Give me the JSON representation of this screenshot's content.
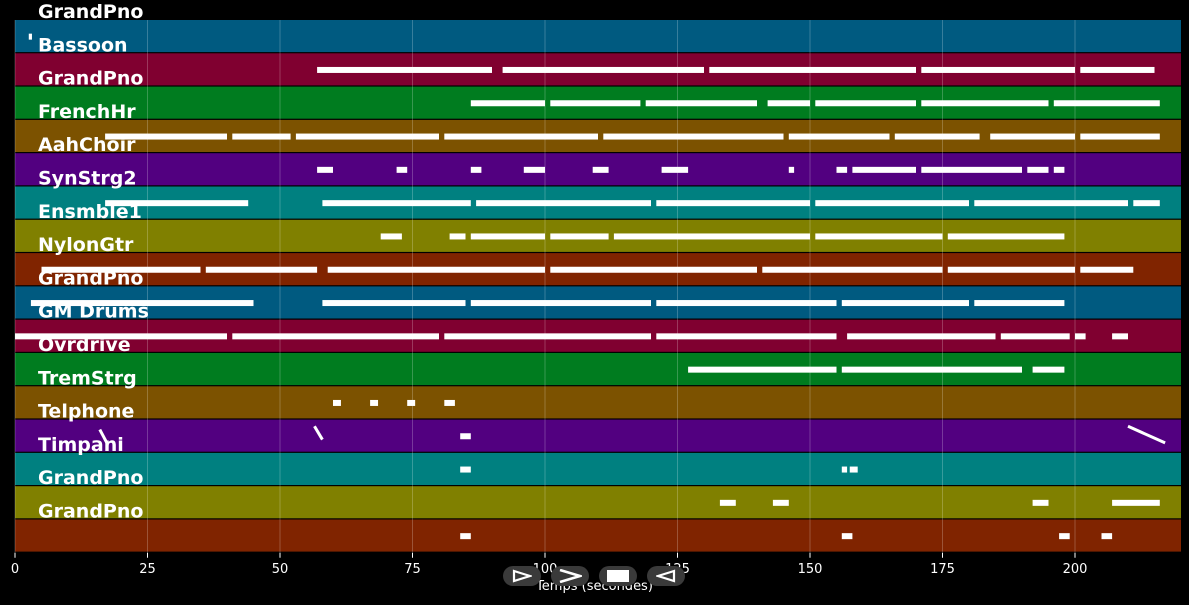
{
  "tracks": [
    {
      "label": "GrandPno",
      "color": "#005a80"
    },
    {
      "label": "Bassoon",
      "color": "#800030"
    },
    {
      "label": "GrandPno",
      "color": "#007c1f"
    },
    {
      "label": "FrenchHr",
      "color": "#7c5200"
    },
    {
      "label": "AahChoir",
      "color": "#520080"
    },
    {
      "label": "SynStrg2",
      "color": "#008080"
    },
    {
      "label": "Ensmble1",
      "color": "#808000"
    },
    {
      "label": "NylonGtr",
      "color": "#802400"
    },
    {
      "label": "GrandPno",
      "color": "#005a80"
    },
    {
      "label": "GM Drums",
      "color": "#800030"
    },
    {
      "label": "Ovrdrive",
      "color": "#007c1f"
    },
    {
      "label": "TremStrg",
      "color": "#7c5200"
    },
    {
      "label": "Telphone",
      "color": "#520080"
    },
    {
      "label": "Timpani",
      "color": "#008080"
    },
    {
      "label": "GrandPno",
      "color": "#808000"
    },
    {
      "label": "GrandPno",
      "color": "#802400"
    }
  ],
  "x_axis": {
    "label": "Temps (secondes)",
    "ticks": [
      "0",
      "25",
      "50",
      "75",
      "100",
      "125",
      "150",
      "175",
      "200"
    ],
    "tick_values": [
      0,
      25,
      50,
      75,
      100,
      125,
      150,
      175,
      200
    ],
    "range": [
      0,
      220
    ]
  },
  "note_color": "#ffffff",
  "notes": [
    {
      "track": 0,
      "segments": [
        [
          2.6,
          3.2
        ]
      ]
    },
    {
      "track": 1,
      "segments": [
        [
          57,
          90
        ],
        [
          92,
          130
        ],
        [
          131,
          170
        ],
        [
          171,
          200
        ],
        [
          201,
          215
        ]
      ]
    },
    {
      "track": 2,
      "segments": [
        [
          86,
          100
        ],
        [
          101,
          118
        ],
        [
          119,
          140
        ],
        [
          142,
          150
        ],
        [
          151,
          170
        ],
        [
          171,
          195
        ],
        [
          196,
          216
        ]
      ]
    },
    {
      "track": 3,
      "segments": [
        [
          17,
          40
        ],
        [
          41,
          52
        ],
        [
          53,
          80
        ],
        [
          81,
          110
        ],
        [
          111,
          145
        ],
        [
          146,
          165
        ],
        [
          166,
          182
        ],
        [
          184,
          200
        ],
        [
          201,
          216
        ]
      ]
    },
    {
      "track": 4,
      "segments": [
        [
          57,
          60
        ],
        [
          72,
          74
        ],
        [
          86,
          88
        ],
        [
          96,
          100
        ],
        [
          109,
          112
        ],
        [
          122,
          127
        ],
        [
          146,
          147
        ],
        [
          155,
          157
        ],
        [
          158,
          170
        ],
        [
          171,
          190
        ],
        [
          191,
          195
        ],
        [
          196,
          198
        ]
      ]
    },
    {
      "track": 5,
      "segments": [
        [
          17,
          44
        ],
        [
          58,
          86
        ],
        [
          87,
          120
        ],
        [
          121,
          150
        ],
        [
          151,
          180
        ],
        [
          181,
          210
        ],
        [
          211,
          216
        ]
      ]
    },
    {
      "track": 6,
      "segments": [
        [
          69,
          73
        ],
        [
          82,
          85
        ],
        [
          86,
          100
        ],
        [
          101,
          112
        ],
        [
          113,
          150
        ],
        [
          151,
          175
        ],
        [
          176,
          198
        ]
      ]
    },
    {
      "track": 7,
      "segments": [
        [
          5,
          35
        ],
        [
          36,
          57
        ],
        [
          59,
          100
        ],
        [
          101,
          140
        ],
        [
          141,
          175
        ],
        [
          176,
          200
        ],
        [
          201,
          211
        ]
      ]
    },
    {
      "track": 8,
      "segments": [
        [
          3,
          45
        ],
        [
          58,
          85
        ],
        [
          86,
          120
        ],
        [
          121,
          155
        ],
        [
          156,
          180
        ],
        [
          181,
          198
        ]
      ]
    },
    {
      "track": 9,
      "segments": [
        [
          0,
          40
        ],
        [
          41,
          80
        ],
        [
          81,
          120
        ],
        [
          121,
          155
        ],
        [
          157,
          185
        ],
        [
          186,
          199
        ],
        [
          200,
          202
        ],
        [
          207,
          210
        ]
      ]
    },
    {
      "track": 10,
      "segments": [
        [
          127,
          155
        ],
        [
          156,
          190
        ],
        [
          192,
          198
        ]
      ]
    },
    {
      "track": 11,
      "segments": [
        [
          60,
          61.5
        ],
        [
          67,
          68.5
        ],
        [
          74,
          75.5
        ],
        [
          81,
          83
        ]
      ]
    },
    {
      "track": 12,
      "segments": [
        [
          84,
          86
        ]
      ]
    },
    {
      "track": 13,
      "segments": [
        [
          84,
          86
        ],
        [
          156,
          157
        ],
        [
          157.5,
          159
        ]
      ]
    },
    {
      "track": 14,
      "segments": [
        [
          133,
          136
        ],
        [
          143,
          146
        ],
        [
          192,
          195
        ],
        [
          207,
          216
        ]
      ]
    },
    {
      "track": 15,
      "segments": [
        [
          84,
          86
        ],
        [
          156,
          158
        ],
        [
          197,
          199
        ],
        [
          205,
          207
        ]
      ]
    }
  ],
  "slides": [
    {
      "track": 12,
      "from": [
        16,
        0.3
      ],
      "to": [
        17.5,
        0.75
      ]
    },
    {
      "track": 12,
      "from": [
        56.5,
        0.2
      ],
      "to": [
        58,
        0.6
      ]
    },
    {
      "track": 12,
      "from": [
        210,
        0.2
      ],
      "to": [
        217,
        0.7
      ]
    }
  ],
  "controls": [
    {
      "name": "skip-back-button",
      "icon": "skip-back-icon"
    },
    {
      "name": "play-button",
      "icon": "play-icon"
    },
    {
      "name": "stop-button",
      "icon": "stop-icon"
    },
    {
      "name": "skip-forward-button",
      "icon": "skip-forward-icon"
    }
  ]
}
